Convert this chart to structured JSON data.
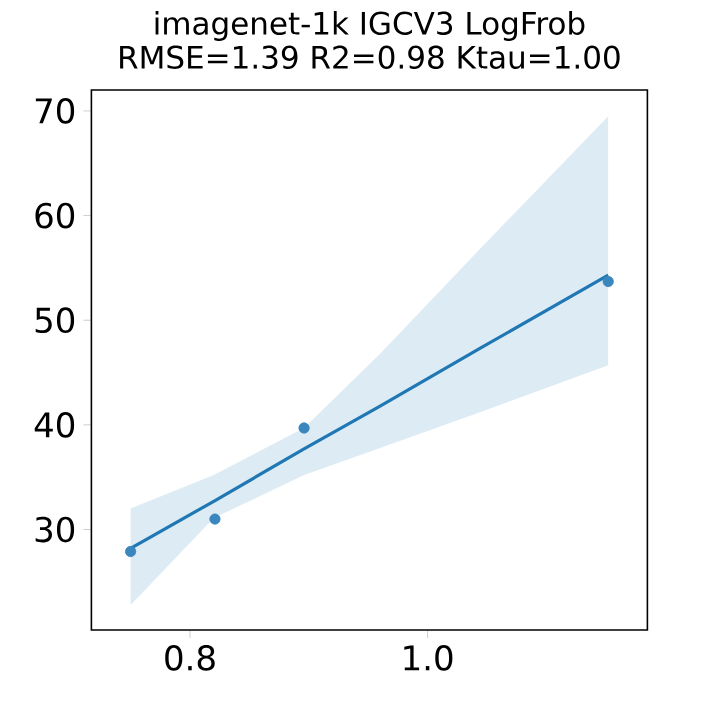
{
  "chart_data": {
    "type": "scatter",
    "title": "imagenet-1k IGCV3 LogFrob",
    "subtitle": "RMSE=1.39  R2=0.98 Ktau=1.00",
    "xlim": [
      0.717,
      1.185
    ],
    "ylim": [
      20.4,
      72
    ],
    "xticks": [
      0.8,
      {
        "value": 1.0,
        "label": "1.0"
      }
    ],
    "yticks": [
      30,
      40,
      50,
      60,
      70
    ],
    "series": [
      {
        "color": "#3a87be",
        "marker": "circle",
        "x": [
          0.75,
          0.821,
          0.896,
          1.152
        ],
        "values": [
          27.9,
          31.0,
          39.7,
          53.7
        ]
      },
      {
        "type": "line",
        "color": "#1f77b4",
        "line_style": "solid",
        "x": [
          0.75,
          0.82,
          0.896,
          0.96,
          1.044,
          1.152
        ],
        "values": [
          28.2,
          32.7,
          37.7,
          41.8,
          47.3,
          54.3
        ],
        "lower": [
          22.8,
          31.1,
          35.2,
          37.8,
          41.2,
          45.7
        ],
        "upper": [
          32.0,
          35.2,
          39.7,
          46.8,
          56.8,
          69.5
        ]
      }
    ]
  }
}
